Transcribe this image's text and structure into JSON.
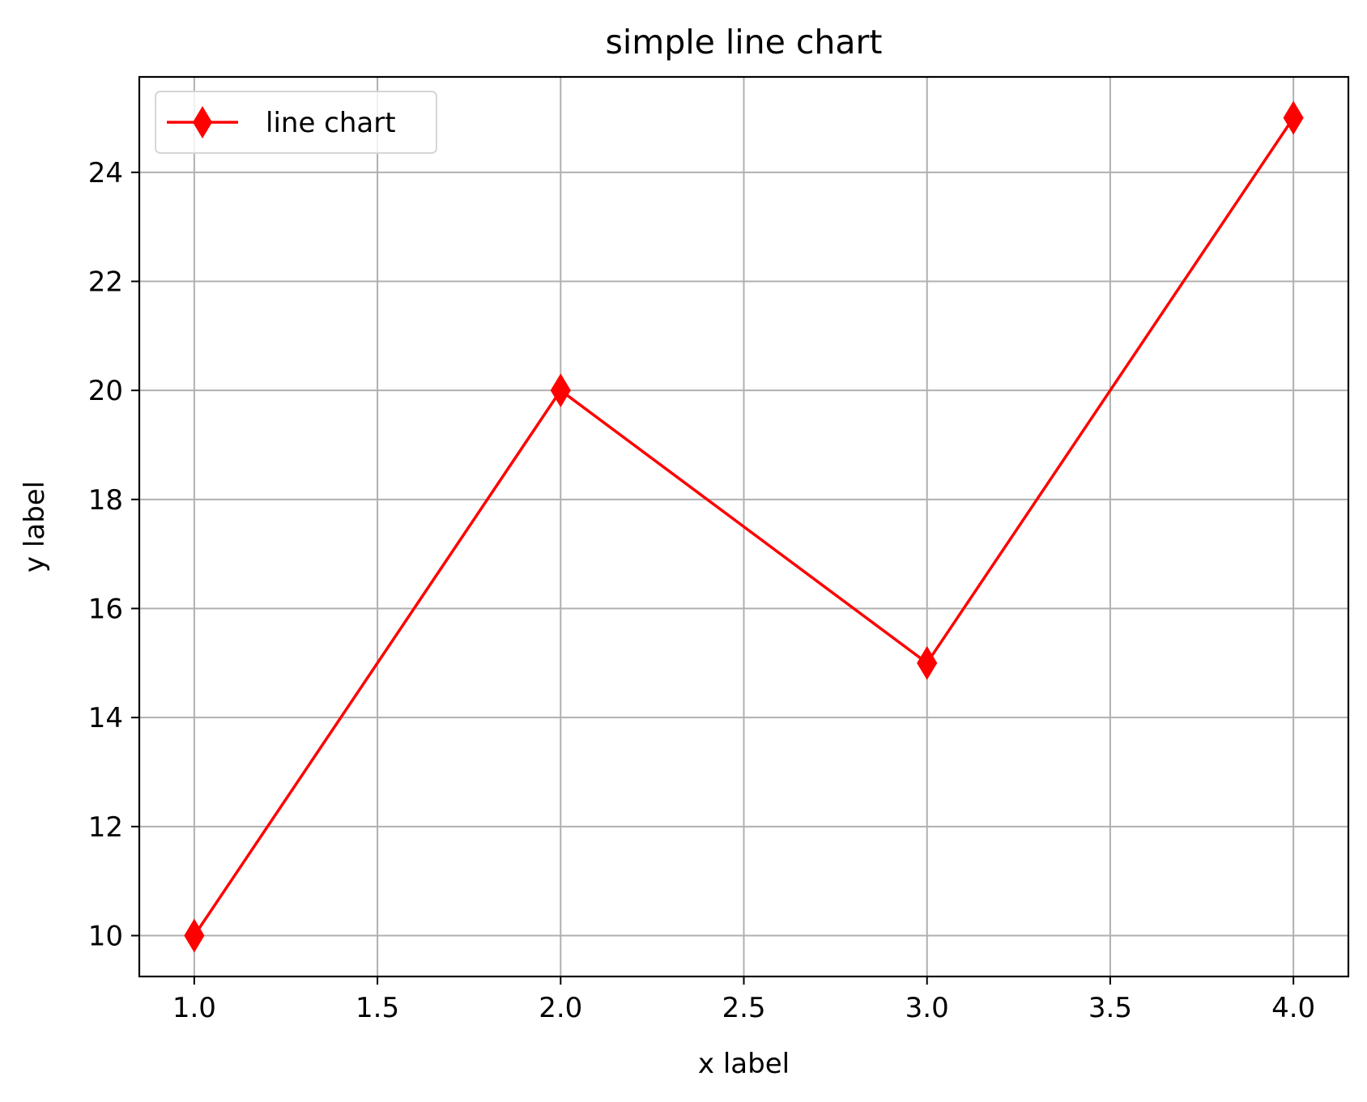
{
  "chart_data": {
    "type": "line",
    "title": "simple line chart",
    "xlabel": "x label",
    "ylabel": "y label",
    "x": [
      1,
      2,
      3,
      4
    ],
    "series": [
      {
        "name": "line chart",
        "values": [
          10,
          20,
          15,
          25
        ],
        "color": "#ff0000",
        "marker": "thin-diamond"
      }
    ],
    "xlim": [
      0.85,
      4.15
    ],
    "ylim": [
      9.25,
      25.75
    ],
    "xticks": [
      1.0,
      1.5,
      2.0,
      2.5,
      3.0,
      3.5,
      4.0
    ],
    "xtick_labels": [
      "1.0",
      "1.5",
      "2.0",
      "2.5",
      "3.0",
      "3.5",
      "4.0"
    ],
    "yticks": [
      10,
      12,
      14,
      16,
      18,
      20,
      22,
      24
    ],
    "ytick_labels": [
      "10",
      "12",
      "14",
      "16",
      "18",
      "20",
      "22",
      "24"
    ],
    "grid": true,
    "grid_color": "#b0b0b0",
    "legend_position": "upper-left"
  }
}
